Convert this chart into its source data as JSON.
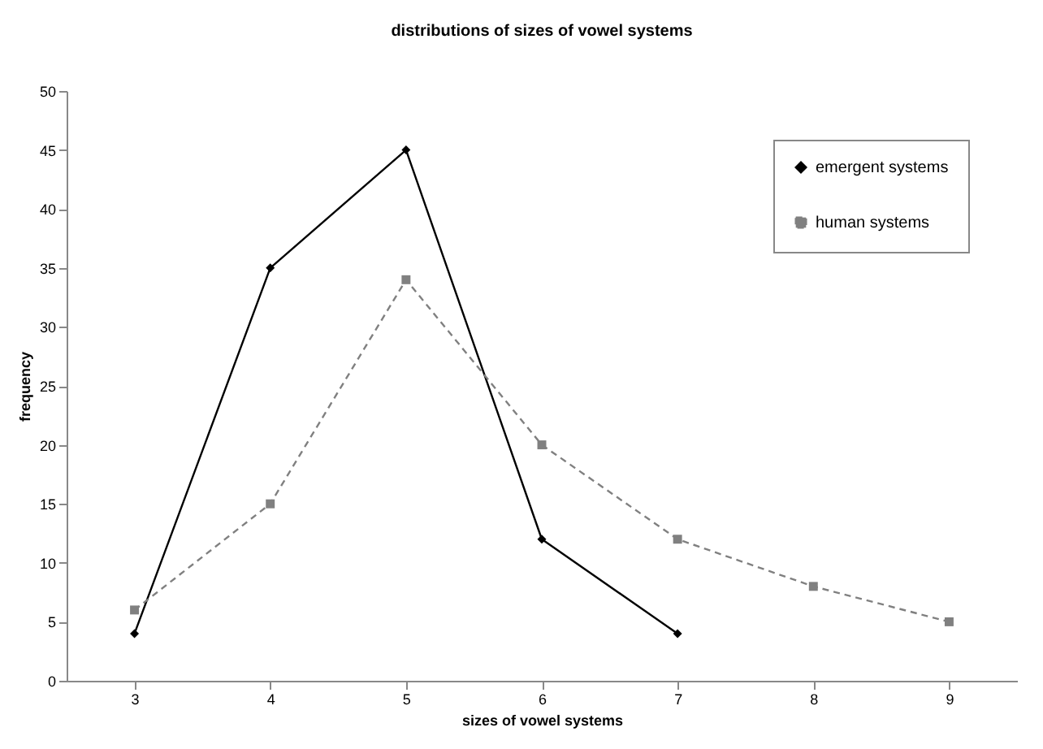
{
  "chart_data": {
    "type": "line",
    "title": "distributions of sizes of vowel systems",
    "xlabel": "sizes of vowel systems",
    "ylabel": "frequency",
    "categories": [
      "3",
      "4",
      "5",
      "6",
      "7",
      "8",
      "9"
    ],
    "series": [
      {
        "name": "emergent systems",
        "color": "#000000",
        "marker": "diamond",
        "line_style": "solid",
        "values": [
          4,
          35,
          45,
          12,
          4,
          null,
          null
        ]
      },
      {
        "name": "human systems",
        "color": "#808080",
        "marker": "square",
        "line_style": "dashed",
        "values": [
          6,
          15,
          34,
          20,
          12,
          8,
          5
        ]
      }
    ],
    "ylim": [
      0,
      50
    ],
    "yticks": [
      0,
      5,
      10,
      15,
      20,
      25,
      30,
      35,
      40,
      45,
      50
    ],
    "grid": false,
    "legend": "top right"
  }
}
